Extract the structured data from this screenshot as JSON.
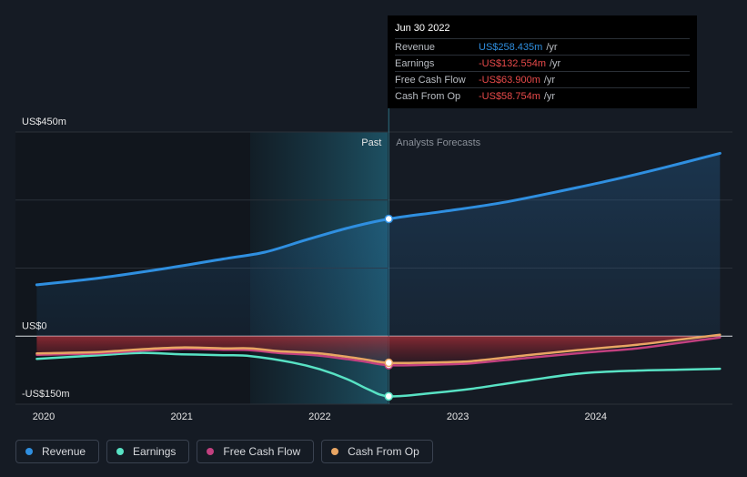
{
  "chart_data": {
    "type": "line",
    "x_ticks": [
      "2020",
      "2021",
      "2022",
      "2023",
      "2024"
    ],
    "y_ticks": [
      "US$450m",
      "US$0",
      "-US$150m"
    ],
    "ylim": [
      -150,
      450
    ],
    "divider_labels": {
      "past": "Past",
      "forecast": "Analysts Forecasts"
    },
    "series": [
      {
        "name": "Revenue",
        "color": "#2f8fe0",
        "points": [
          [
            2019.95,
            113
          ],
          [
            2020.4,
            128
          ],
          [
            2020.9,
            150
          ],
          [
            2021.3,
            170
          ],
          [
            2021.6,
            185
          ],
          [
            2021.9,
            212
          ],
          [
            2022.2,
            238
          ],
          [
            2022.5,
            258.4
          ],
          [
            2022.9,
            275
          ],
          [
            2023.3,
            293
          ],
          [
            2023.7,
            317
          ],
          [
            2024.1,
            343
          ],
          [
            2024.5,
            372
          ],
          [
            2024.9,
            403
          ]
        ]
      },
      {
        "name": "Earnings",
        "color": "#58e2c4",
        "points": [
          [
            2019.95,
            -50
          ],
          [
            2020.4,
            -42
          ],
          [
            2020.7,
            -37
          ],
          [
            2021.0,
            -40
          ],
          [
            2021.3,
            -42
          ],
          [
            2021.5,
            -44
          ],
          [
            2021.8,
            -58
          ],
          [
            2022.0,
            -73
          ],
          [
            2022.2,
            -95
          ],
          [
            2022.35,
            -117
          ],
          [
            2022.5,
            -132.6
          ],
          [
            2022.8,
            -126
          ],
          [
            2023.1,
            -116
          ],
          [
            2023.5,
            -98
          ],
          [
            2023.9,
            -82
          ],
          [
            2024.3,
            -76
          ],
          [
            2024.6,
            -74
          ],
          [
            2024.9,
            -72
          ]
        ]
      },
      {
        "name": "Free Cash Flow",
        "color": "#c2407f",
        "points": [
          [
            2019.95,
            -41
          ],
          [
            2020.4,
            -38
          ],
          [
            2020.7,
            -32
          ],
          [
            2021.0,
            -28
          ],
          [
            2021.3,
            -30
          ],
          [
            2021.5,
            -31
          ],
          [
            2021.7,
            -37
          ],
          [
            2022.0,
            -43
          ],
          [
            2022.3,
            -55
          ],
          [
            2022.5,
            -63.9
          ],
          [
            2022.8,
            -63
          ],
          [
            2023.1,
            -60
          ],
          [
            2023.5,
            -48
          ],
          [
            2023.9,
            -37
          ],
          [
            2024.3,
            -27
          ],
          [
            2024.6,
            -15
          ],
          [
            2024.9,
            -3
          ]
        ]
      },
      {
        "name": "Cash From Op",
        "color": "#e8a563",
        "points": [
          [
            2019.95,
            -38
          ],
          [
            2020.4,
            -35
          ],
          [
            2020.7,
            -29
          ],
          [
            2021.0,
            -25
          ],
          [
            2021.3,
            -27
          ],
          [
            2021.5,
            -27
          ],
          [
            2021.7,
            -33
          ],
          [
            2022.0,
            -38
          ],
          [
            2022.3,
            -50
          ],
          [
            2022.5,
            -58.8
          ],
          [
            2022.8,
            -58
          ],
          [
            2023.1,
            -55
          ],
          [
            2023.5,
            -42
          ],
          [
            2023.9,
            -30
          ],
          [
            2024.3,
            -19
          ],
          [
            2024.6,
            -8
          ],
          [
            2024.9,
            3
          ]
        ]
      }
    ],
    "tooltip": {
      "date": "Jun 30 2022",
      "rows": [
        {
          "label": "Revenue",
          "value": "US$258.435m",
          "unit": "/yr",
          "color": "#2f8fe0"
        },
        {
          "label": "Earnings",
          "value": "-US$132.554m",
          "unit": "/yr",
          "color": "#e84a4a"
        },
        {
          "label": "Free Cash Flow",
          "value": "-US$63.900m",
          "unit": "/yr",
          "color": "#e84a4a"
        },
        {
          "label": "Cash From Op",
          "value": "-US$58.754m",
          "unit": "/yr",
          "color": "#e84a4a"
        }
      ]
    }
  },
  "legend": [
    {
      "label": "Revenue",
      "color": "#2f8fe0"
    },
    {
      "label": "Earnings",
      "color": "#58e2c4"
    },
    {
      "label": "Free Cash Flow",
      "color": "#c2407f"
    },
    {
      "label": "Cash From Op",
      "color": "#e8a563"
    }
  ]
}
